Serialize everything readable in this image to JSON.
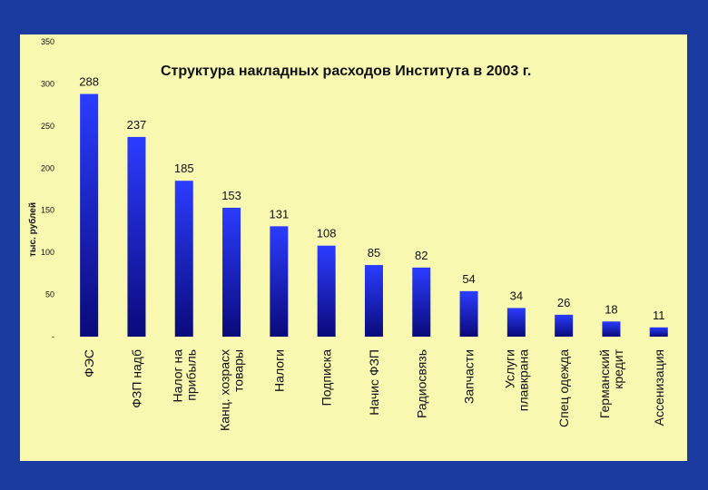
{
  "chart_data": {
    "type": "bar",
    "title": "Структура накладных расходов Института  в 2003  г.",
    "ylabel": "тыс. рублей",
    "xlabel": "",
    "ylim": [
      0,
      350
    ],
    "yticks": [
      "350",
      "300",
      "250",
      "200",
      "150",
      "100",
      "50",
      "-"
    ],
    "categories": [
      [
        "ФЭС"
      ],
      [
        "ФЗП надб"
      ],
      [
        "Налог на",
        "прибыль"
      ],
      [
        "Канц. хозрасх",
        "товары"
      ],
      [
        "Налоги"
      ],
      [
        "Подписка"
      ],
      [
        "Начис ФЗП"
      ],
      [
        "Радиосвязь"
      ],
      [
        "Запчасти"
      ],
      [
        "Услуги",
        "плавкрана"
      ],
      [
        "Спец одежда"
      ],
      [
        "Германский",
        "кредит"
      ],
      [
        "Ассенизация"
      ]
    ],
    "values": [
      288,
      237,
      185,
      153,
      131,
      108,
      85,
      82,
      54,
      34,
      26,
      18,
      11
    ],
    "grid": false,
    "bar_color_top": "#2b3cff",
    "bar_color_bottom": "#0a0a7a",
    "background": "#f8f8b0",
    "frame": "#1a3aa0"
  }
}
